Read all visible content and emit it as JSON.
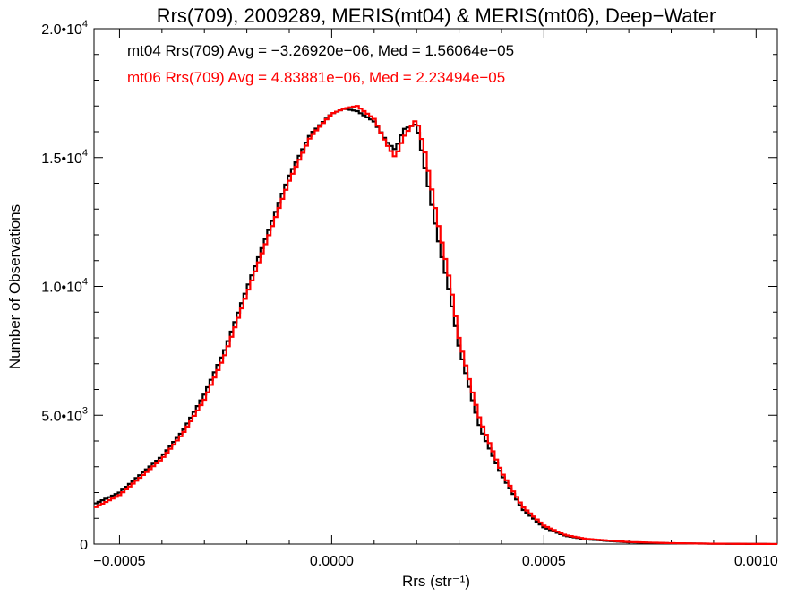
{
  "chart_data": {
    "type": "line",
    "step": true,
    "title": "Rrs(709), 2009289, MERIS(mt04) & MERIS(mt06), Deep−Water",
    "xlabel": "Rrs (str⁻¹)",
    "ylabel": "Number of Observations",
    "xlim": [
      -0.00056,
      0.00105
    ],
    "ylim": [
      0,
      20000
    ],
    "x_ticks": [
      {
        "value": -0.0005,
        "label": "−0.0005"
      },
      {
        "value": 0.0,
        "label": "0.0000"
      },
      {
        "value": 0.0005,
        "label": "0.0005"
      },
      {
        "value": 0.001,
        "label": "0.0010"
      }
    ],
    "y_ticks": [
      {
        "value": 0,
        "label": "0",
        "exp": ""
      },
      {
        "value": 5000,
        "label": "5.0•10",
        "exp": "3"
      },
      {
        "value": 10000,
        "label": "1.0•10",
        "exp": "4"
      },
      {
        "value": 15000,
        "label": "1.5•10",
        "exp": "4"
      },
      {
        "value": 20000,
        "label": "2.0•10",
        "exp": "4"
      }
    ],
    "grid": false,
    "legend_position": "top-left",
    "series": [
      {
        "name": "mt04",
        "color": "#000000",
        "legend_text": "mt04 Rrs(709) Avg = −3.26920e−06, Med = 1.56064e−05",
        "x": [
          -0.00056,
          -0.0005,
          -0.00045,
          -0.0004,
          -0.00035,
          -0.0003,
          -0.00025,
          -0.0002,
          -0.00015,
          -0.0001,
          -5e-05,
          0.0,
          3e-05,
          6e-05,
          0.0001,
          0.00013,
          0.00015,
          0.00017,
          0.0002,
          0.00022,
          0.00025,
          0.00028,
          0.0003,
          0.00033,
          0.00035,
          0.0004,
          0.00045,
          0.0005,
          0.00055,
          0.0006,
          0.0007,
          0.0008,
          0.0009,
          0.001,
          0.00105
        ],
        "y": [
          1550,
          2000,
          2700,
          3400,
          4400,
          5800,
          7600,
          9900,
          12100,
          14300,
          15900,
          16700,
          16900,
          16800,
          16400,
          15600,
          15300,
          16100,
          16300,
          14600,
          11900,
          9600,
          7700,
          5700,
          4500,
          2700,
          1350,
          650,
          320,
          180,
          70,
          30,
          12,
          4,
          2
        ]
      },
      {
        "name": "mt06",
        "color": "#ff0000",
        "legend_text": "mt06 Rrs(709) Avg = 4.83881e−06, Med = 2.23494e−05",
        "x": [
          -0.00056,
          -0.0005,
          -0.00045,
          -0.0004,
          -0.00035,
          -0.0003,
          -0.00025,
          -0.0002,
          -0.00015,
          -0.0001,
          -5e-05,
          0.0,
          3e-05,
          6e-05,
          0.0001,
          0.00013,
          0.00015,
          0.00017,
          0.0002,
          0.00022,
          0.00025,
          0.00028,
          0.0003,
          0.00033,
          0.00035,
          0.0004,
          0.00045,
          0.0005,
          0.00055,
          0.0006,
          0.0007,
          0.0008,
          0.0009,
          0.001,
          0.00105
        ],
        "y": [
          1400,
          1900,
          2600,
          3300,
          4300,
          5600,
          7400,
          9700,
          11900,
          14100,
          15800,
          16700,
          16900,
          17000,
          16500,
          15500,
          15000,
          15800,
          16500,
          15200,
          12500,
          10100,
          8000,
          6000,
          4800,
          2800,
          1450,
          720,
          350,
          200,
          80,
          35,
          14,
          5,
          2
        ]
      }
    ]
  }
}
